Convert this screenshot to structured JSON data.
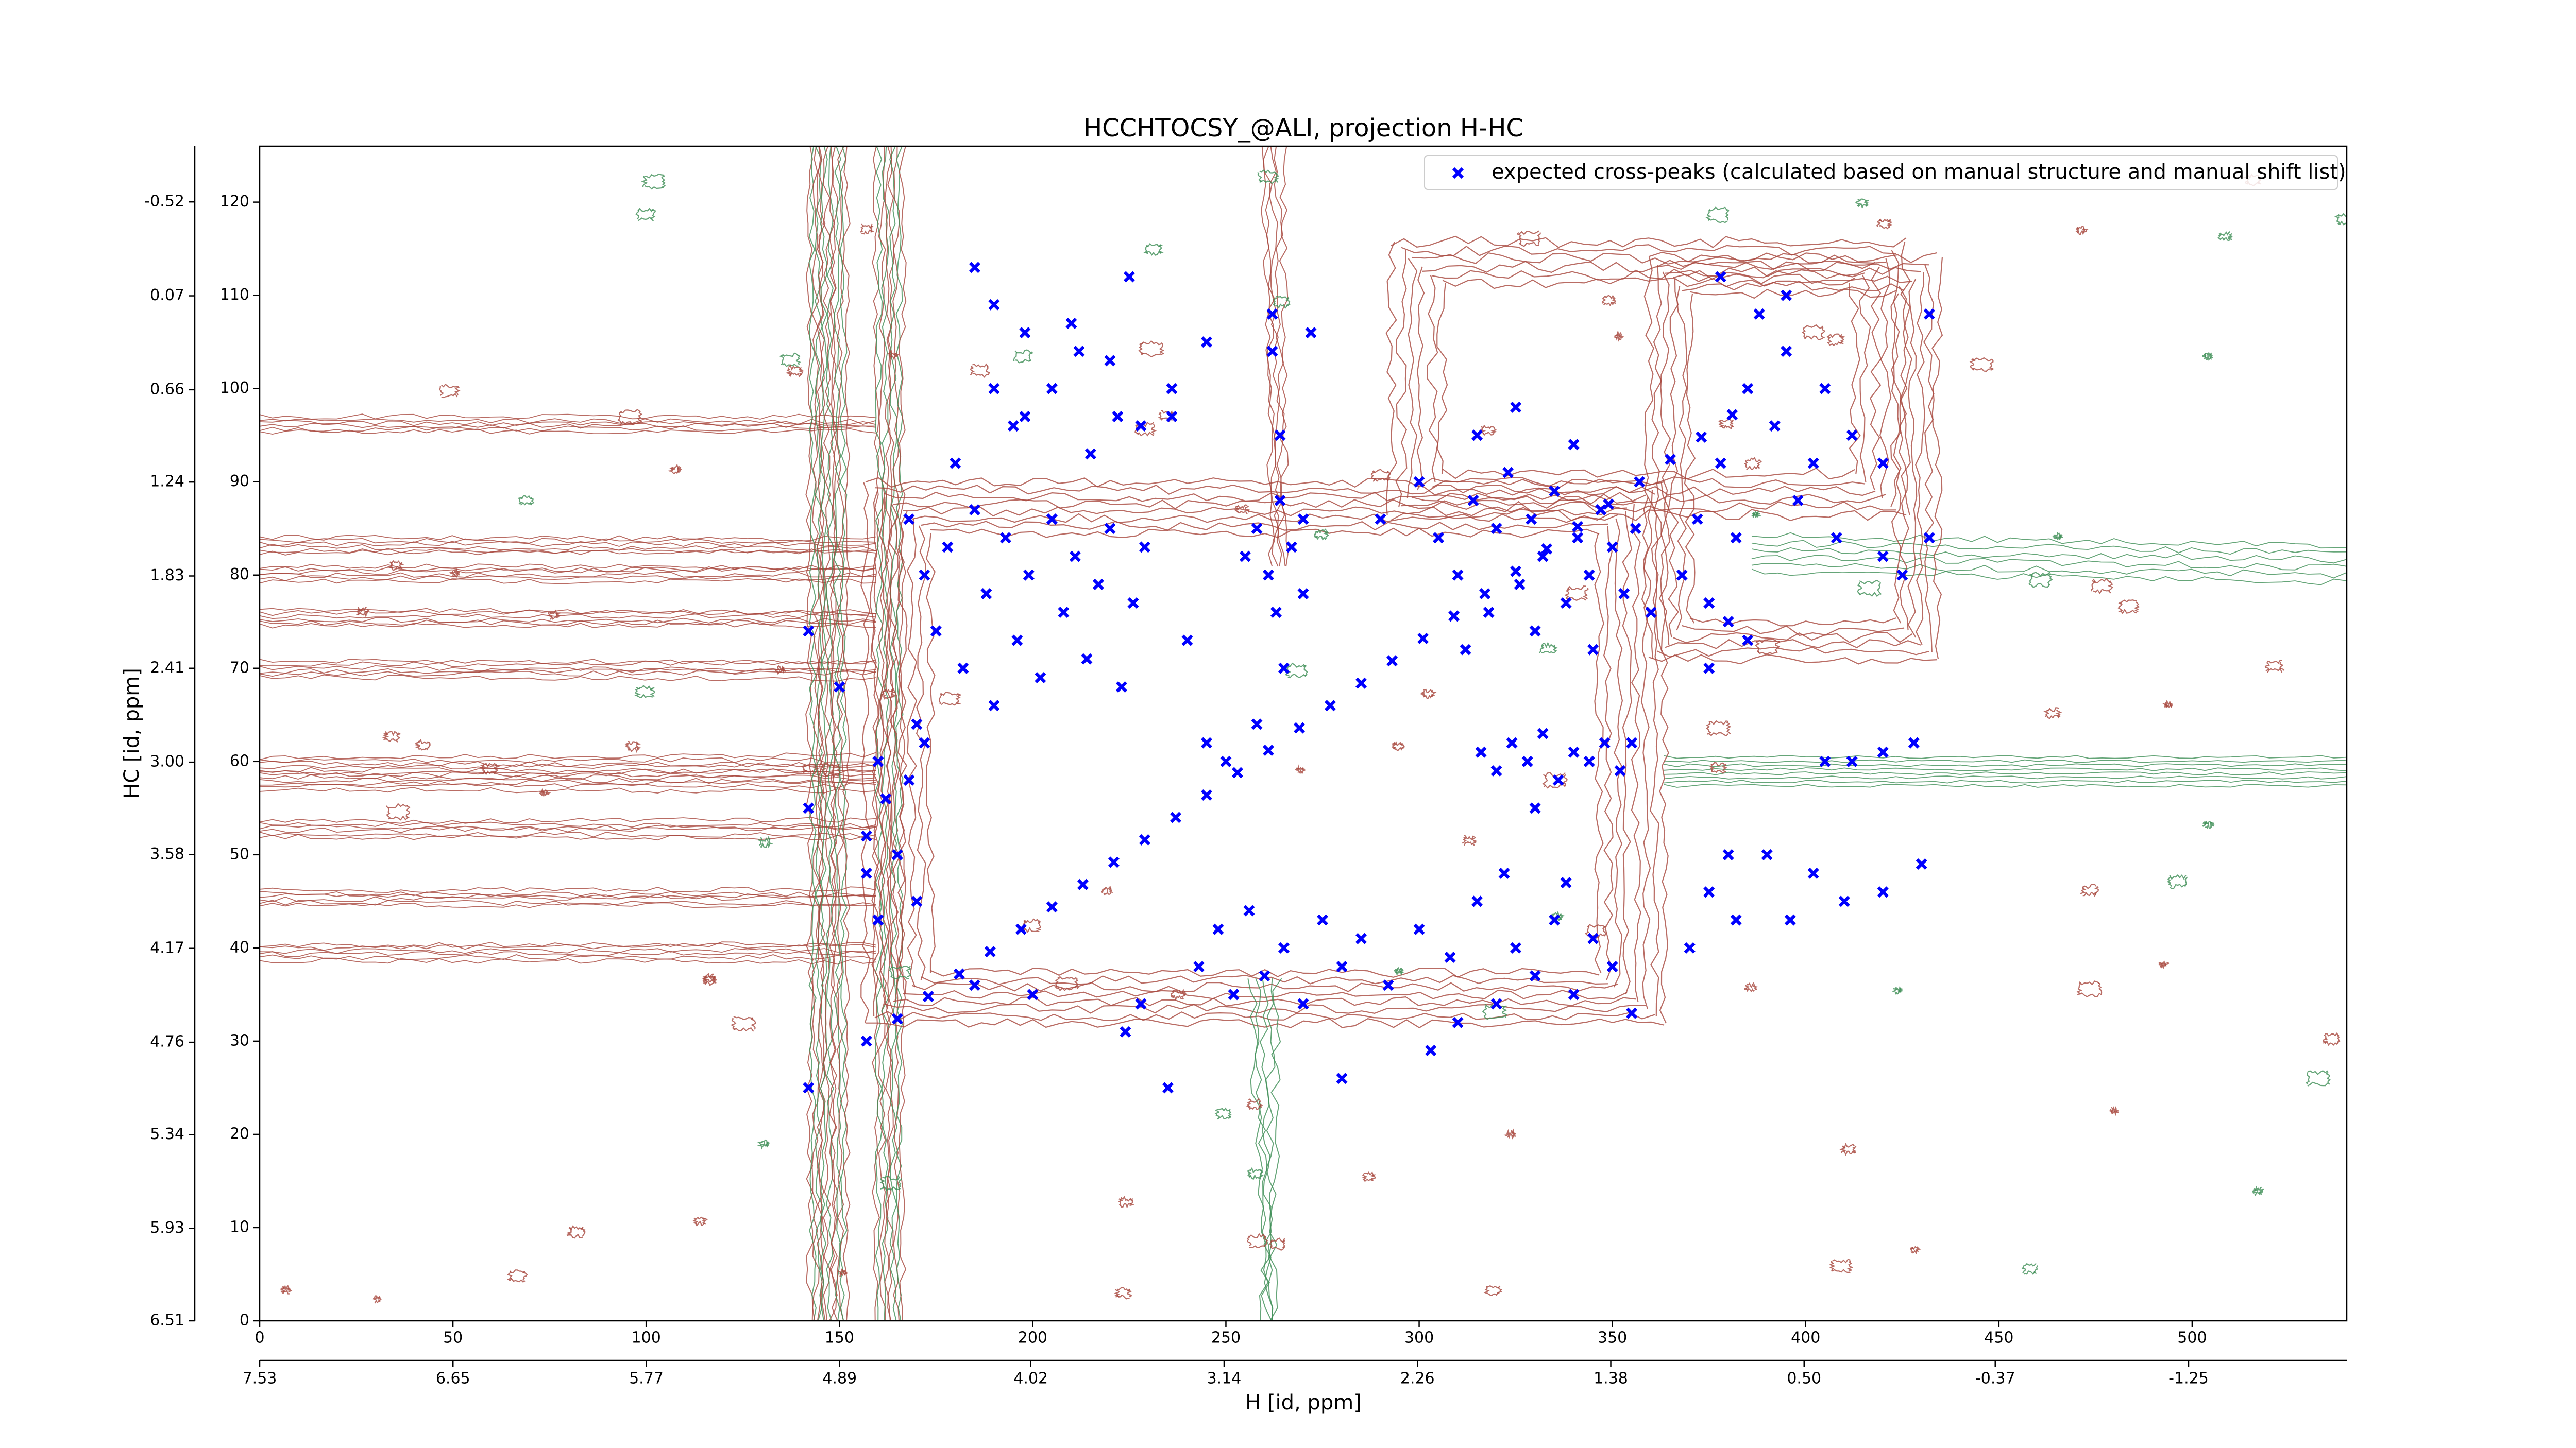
{
  "chart_data": {
    "type": "scatter",
    "title": "HCCHTOCSY_@ALI, projection H-HC",
    "x_label": "H [id, ppm]",
    "y_label": "HC [id, ppm]",
    "xlim": [
      0,
      540
    ],
    "ylim": [
      0,
      126
    ],
    "xticks": [
      0,
      50,
      100,
      150,
      200,
      250,
      300,
      350,
      400,
      450,
      500
    ],
    "yticks": [
      0,
      10,
      20,
      30,
      40,
      50,
      60,
      70,
      80,
      90,
      100,
      110,
      120
    ],
    "x2lim": [
      7.53,
      -1.97
    ],
    "x2ticks": [
      7.53,
      6.65,
      5.77,
      4.89,
      4.02,
      3.14,
      2.26,
      1.38,
      {
        "value": 0.5,
        "label": "0.50"
      },
      -0.37,
      -1.25
    ],
    "y2lim": [
      6.51,
      -0.87
    ],
    "y2ticks": [
      6.51,
      5.93,
      5.34,
      4.76,
      4.17,
      3.58,
      {
        "value": 3,
        "label": "3.00"
      },
      2.41,
      1.83,
      1.24,
      0.66,
      0.07,
      -0.52
    ],
    "grid": false,
    "legend": "upper right",
    "series": [
      {
        "name": "expected cross-peaks (calculated based on manual structure and manual shift list)",
        "color": "#0000ff",
        "x": [
          157,
          165,
          173,
          181,
          189,
          197,
          205,
          213,
          221,
          229,
          237,
          245,
          253,
          261,
          269,
          277,
          285,
          293,
          301,
          309,
          317,
          325,
          333,
          341,
          349,
          357,
          365,
          373,
          381,
          168,
          172,
          175,
          178,
          182,
          185,
          188,
          190,
          193,
          196,
          199,
          202,
          205,
          208,
          211,
          214,
          217,
          220,
          223,
          226,
          229,
          180,
          195,
          205,
          215,
          222,
          212,
          198,
          190,
          170,
          245,
          250,
          258,
          240,
          265,
          270,
          255,
          258,
          261,
          264,
          267,
          270,
          263,
          262,
          262,
          272,
          236,
          305,
          310,
          314,
          318,
          320,
          323,
          326,
          329,
          332,
          335,
          338,
          341,
          344,
          347,
          350,
          353,
          356,
          330,
          315,
          325,
          340,
          300,
          290,
          345,
          360,
          312,
          316,
          320,
          324,
          328,
          332,
          336,
          340,
          344,
          348,
          352,
          330,
          355,
          243,
          248,
          252,
          256,
          260,
          265,
          270,
          275,
          280,
          285,
          292,
          300,
          308,
          315,
          320,
          325,
          330,
          335,
          340,
          345,
          350,
          355,
          322,
          338,
          310,
          228,
          224,
          200,
          185,
          235,
          280,
          303,
          368,
          372,
          375,
          378,
          382,
          385,
          388,
          392,
          395,
          398,
          402,
          405,
          408,
          412,
          378,
          395,
          420,
          425,
          432,
          432,
          420,
          375,
          380,
          385,
          370,
          375,
          382,
          390,
          396,
          402,
          380,
          410,
          420,
          430,
          405,
          412,
          420,
          428,
          142,
          157,
          160,
          162,
          168,
          172,
          150,
          142,
          142,
          157,
          160,
          165,
          170,
          190,
          185,
          210,
          225,
          220,
          198,
          228,
          264,
          245,
          236
        ],
        "values": [
          30,
          32.4,
          34.8,
          37.2,
          39.6,
          42,
          44.4,
          46.8,
          49.2,
          51.6,
          54,
          56.4,
          58.8,
          61.2,
          63.6,
          66,
          68.4,
          70.8,
          73.2,
          75.6,
          78,
          80.4,
          82.8,
          85.2,
          87.6,
          90,
          92.4,
          94.8,
          97.2,
          86,
          80,
          74,
          83,
          70,
          87,
          78,
          66,
          84,
          73,
          80,
          69,
          86,
          76,
          82,
          71,
          79,
          85,
          68,
          77,
          83,
          92,
          96,
          100,
          93,
          97,
          104,
          106,
          109,
          64,
          62,
          60,
          64,
          73,
          70,
          78,
          82,
          85,
          80,
          88,
          83,
          86,
          76,
          104,
          108,
          106,
          97,
          84,
          80,
          88,
          76,
          85,
          91,
          79,
          86,
          82,
          89,
          77,
          84,
          80,
          87,
          83,
          78,
          85,
          74,
          95,
          98,
          94,
          90,
          86,
          72,
          76,
          72,
          61,
          59,
          62,
          60,
          63,
          58,
          61,
          60,
          62,
          59,
          55,
          62,
          38,
          42,
          35,
          44,
          37,
          40,
          34,
          43,
          38,
          41,
          36,
          42,
          39,
          45,
          34,
          40,
          37,
          43,
          35,
          41,
          38,
          33,
          48,
          47,
          32,
          34,
          31,
          35,
          36,
          25,
          26,
          29,
          80,
          86,
          77,
          92,
          84,
          100,
          108,
          96,
          104,
          88,
          92,
          100,
          84,
          95,
          112,
          110,
          82,
          80,
          84,
          108,
          92,
          70,
          75,
          73,
          40,
          46,
          43,
          50,
          43,
          48,
          50,
          45,
          46,
          49,
          60,
          60,
          61,
          62,
          55,
          52,
          60,
          56,
          58,
          62,
          68,
          74,
          25,
          48,
          43,
          50,
          45,
          100,
          113,
          107,
          112,
          103,
          97,
          96,
          95,
          105,
          100
        ]
      }
    ]
  }
}
